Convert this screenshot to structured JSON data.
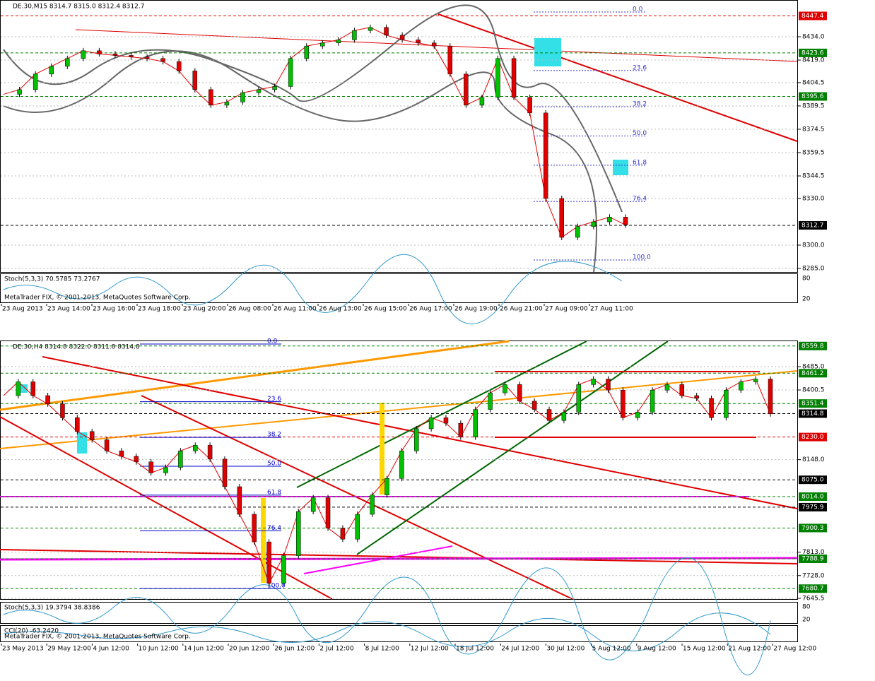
{
  "panels": [
    {
      "header": "DE.30,M15  8314.7 8315.0 8312.4 8312.7",
      "price_ticks": [
        {
          "value": 8434,
          "label": "8434.0"
        },
        {
          "value": 8419,
          "label": "8419.0"
        },
        {
          "value": 8404.5,
          "label": "8404.5"
        },
        {
          "value": 8389.5,
          "label": "8389.5"
        },
        {
          "value": 8374.5,
          "label": "8374.5"
        },
        {
          "value": 8359.5,
          "label": "8359.5"
        },
        {
          "value": 8344.5,
          "label": "8344.5"
        },
        {
          "value": 8330,
          "label": "8330.0"
        },
        {
          "value": 8300,
          "label": "8300.0"
        },
        {
          "value": 8285,
          "label": "8285.0"
        }
      ],
      "price_marks": [
        {
          "value": 8447.4,
          "label": "8447.4",
          "color": "#e00000"
        },
        {
          "value": 8423.6,
          "label": "8423.6",
          "color": "#008000"
        },
        {
          "value": 8395.6,
          "label": "8395.6",
          "color": "#008000"
        },
        {
          "value": 8312.7,
          "label": "8312.7",
          "color": "#000000"
        }
      ],
      "fib_levels": [
        {
          "value": 0,
          "label": "0.0"
        },
        {
          "value": 23.6,
          "label": "23.6"
        },
        {
          "value": 38.2,
          "label": "38.2"
        },
        {
          "value": 50,
          "label": "50.0"
        },
        {
          "value": 61.8,
          "label": "61.8"
        },
        {
          "value": 76.4,
          "label": "76.4"
        },
        {
          "value": 100,
          "label": "100.0"
        }
      ],
      "closes": [
        8397,
        8400,
        8410,
        8415,
        8420,
        8425,
        8423,
        8422,
        8421,
        8420,
        8418,
        8412,
        8400,
        8390,
        8392,
        8398,
        8400,
        8402,
        8420,
        8428,
        8430,
        8432,
        8438,
        8440,
        8435,
        8432,
        8430,
        8428,
        8410,
        8390,
        8395,
        8420,
        8395,
        8385,
        8330,
        8305,
        8312,
        8315,
        8318,
        8313
      ],
      "indicators": [
        {
          "label": "Stoch(5,3,3) 70.5785 73.2767",
          "levels": [
            "80",
            "20"
          ]
        }
      ],
      "copyright": "MetaTrader FIX, © 2001-2013, MetaQuotes Software Corp.",
      "time_labels": [
        "23 Aug 2013",
        "23 Aug 14:00",
        "23 Aug 16:00",
        "23 Aug 18:00",
        "23 Aug 20:00",
        "26 Aug 08:00",
        "26 Aug 11:00",
        "26 Aug 13:00",
        "26 Aug 15:00",
        "26 Aug 17:00",
        "26 Aug 19:00",
        "26 Aug 21:00",
        "27 Aug 09:00",
        "27 Aug 11:00"
      ]
    },
    {
      "header": "DE.30,H4  8314.8 8322.0 8311.8 8314.8",
      "price_ticks": [
        {
          "value": 8485,
          "label": "8485.0"
        },
        {
          "value": 8400.5,
          "label": "8400.5"
        },
        {
          "value": 8148,
          "label": "8148.0"
        },
        {
          "value": 7813,
          "label": "7813.0"
        },
        {
          "value": 7728,
          "label": "7728.0"
        },
        {
          "value": 7645.5,
          "label": "7645.5"
        }
      ],
      "price_marks": [
        {
          "value": 8559.8,
          "label": "8559.8",
          "color": "#008000"
        },
        {
          "value": 8461.2,
          "label": "8461.2",
          "color": "#008000"
        },
        {
          "value": 8351.4,
          "label": "8351.4",
          "color": "#008000"
        },
        {
          "value": 8314.8,
          "label": "8314.8",
          "color": "#000000"
        },
        {
          "value": 8230,
          "label": "8230.0",
          "color": "#e00000"
        },
        {
          "value": 8075,
          "label": "8075.0",
          "color": "#000000"
        },
        {
          "value": 8014,
          "label": "8014.0",
          "color": "#008000"
        },
        {
          "value": 7975.9,
          "label": "7975.9",
          "color": "#000000"
        },
        {
          "value": 7900.3,
          "label": "7900.3",
          "color": "#008000"
        },
        {
          "value": 7788.9,
          "label": "7788.9",
          "color": "#008000"
        },
        {
          "value": 7680.7,
          "label": "7680.7",
          "color": "#008000"
        }
      ],
      "fib_levels": [
        {
          "value": 0,
          "label": "0.0"
        },
        {
          "value": 23.6,
          "label": "23.6"
        },
        {
          "value": 38.2,
          "label": "38.2"
        },
        {
          "value": 50,
          "label": "50.0"
        },
        {
          "value": 61.8,
          "label": "61.8"
        },
        {
          "value": 76.4,
          "label": "76.4"
        },
        {
          "value": 100,
          "label": "100.0"
        }
      ],
      "closes": [
        8380,
        8430,
        8380,
        8350,
        8300,
        8250,
        8220,
        8180,
        8160,
        8140,
        8100,
        8120,
        8180,
        8200,
        8150,
        8050,
        7950,
        7850,
        7700,
        7800,
        7960,
        8010,
        7900,
        7860,
        7950,
        8020,
        8080,
        8180,
        8260,
        8300,
        8280,
        8230,
        8330,
        8390,
        8420,
        8360,
        8330,
        8290,
        8320,
        8420,
        8440,
        8400,
        8300,
        8320,
        8400,
        8420,
        8380,
        8370,
        8300,
        8400,
        8430,
        8440,
        8314
      ],
      "indicators": [
        {
          "label": "Stoch(5,3,3) 19.3794 38.8386",
          "levels": [
            "80",
            "20"
          ]
        },
        {
          "label": "CCI(20) -63.2420",
          "levels": []
        }
      ],
      "copyright": "MetaTrader FIX, © 2001-2013, MetaQuotes Software Corp.",
      "time_labels": [
        "23 May 2013",
        "29 May 12:00",
        "4 Jun 12:00",
        "10 Jun 12:00",
        "14 Jun 12:00",
        "20 Jun 12:00",
        "26 Jun 12:00",
        "2 Jul 12:00",
        "8 Jul 12:00",
        "12 Jul 12:00",
        "18 Jul 12:00",
        "24 Jul 12:00",
        "30 Jul 12:00",
        "5 Aug 12:00",
        "9 Aug 12:00",
        "15 Aug 12:00",
        "21 Aug 12:00",
        "27 Aug 12:00"
      ]
    }
  ]
}
